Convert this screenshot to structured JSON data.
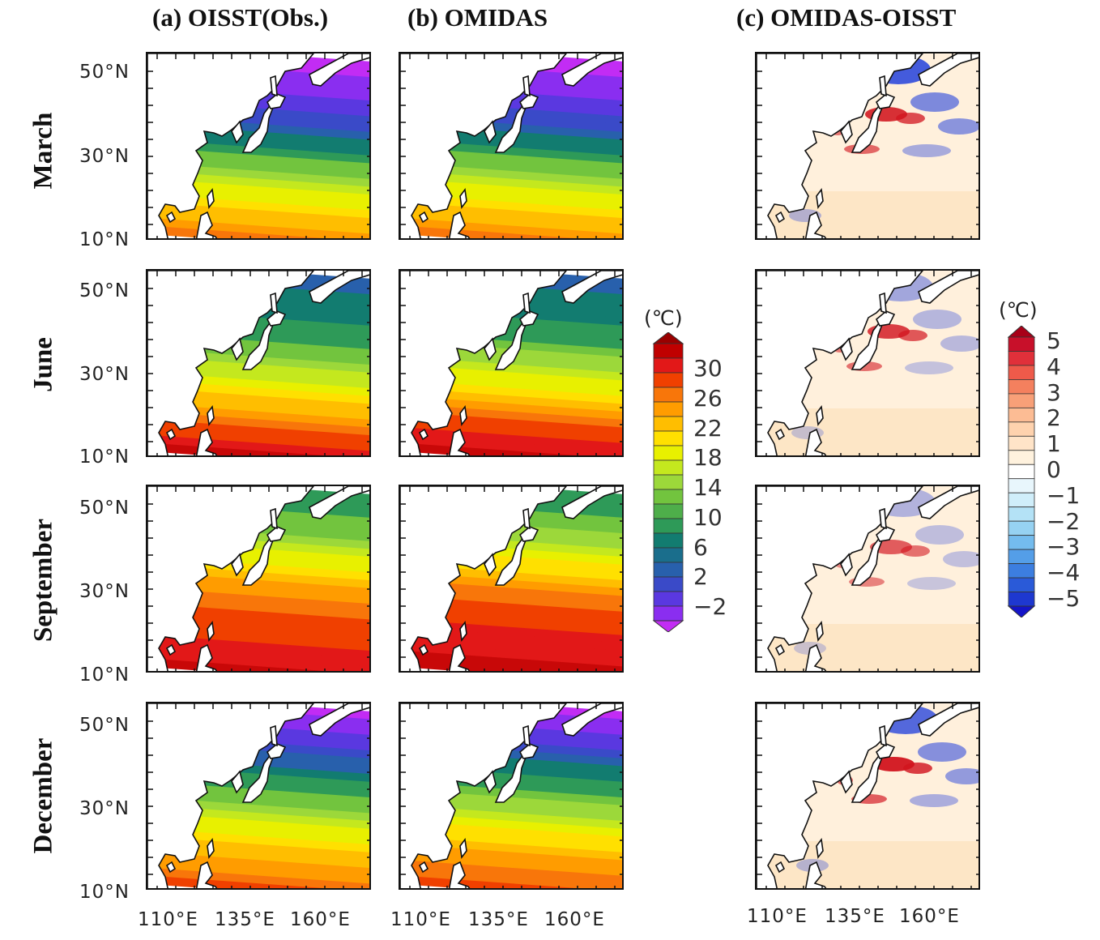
{
  "columns": [
    {
      "title": "(a) OISST(Obs.)",
      "kind": "sst"
    },
    {
      "title": "(b) OMIDAS",
      "kind": "sst"
    },
    {
      "title": "(c) OMIDAS-OISST",
      "kind": "diff"
    }
  ],
  "rows": [
    {
      "label": "March",
      "sst": [
        -2,
        0,
        4,
        10,
        18,
        23,
        26
      ],
      "diff_warm": 4.5,
      "diff_cold": -4.5
    },
    {
      "label": "June",
      "sst": [
        6,
        8,
        12,
        18,
        23,
        27,
        29
      ],
      "diff_warm": 4.0,
      "diff_cold": -1.5
    },
    {
      "label": "September",
      "sst": [
        10,
        14,
        20,
        25,
        27,
        28,
        29
      ],
      "diff_warm": 3.0,
      "diff_cold": -1.0
    },
    {
      "label": "December",
      "sst": [
        -2,
        2,
        8,
        15,
        21,
        25,
        27
      ],
      "diff_warm": 5.0,
      "diff_cold": -4.0
    }
  ],
  "lat_labels": [
    "50°N",
    "30°N",
    "10°N"
  ],
  "lon_labels": [
    "110°E",
    "135°E",
    "160°E"
  ],
  "sst_colorbar": {
    "unit": "(℃)",
    "ticks": [
      "30",
      "26",
      "22",
      "18",
      "14",
      "10",
      "6",
      "2",
      "−2"
    ],
    "colors": [
      "#9a0000",
      "#c00000",
      "#e21818",
      "#f04000",
      "#f8760a",
      "#ff9c00",
      "#ffbe00",
      "#ffe000",
      "#e8f000",
      "#c4e81e",
      "#9cd83a",
      "#72c43e",
      "#4eae4a",
      "#2e9a58",
      "#127c70",
      "#1a6e8c",
      "#2860ac",
      "#3a4ac8",
      "#5a38e0",
      "#8a2ef0",
      "#c22cf4"
    ]
  },
  "diff_colorbar": {
    "unit": "(℃)",
    "ticks": [
      "5",
      "4",
      "3",
      "2",
      "1",
      "0",
      "−1",
      "−2",
      "−3",
      "−4",
      "−5"
    ],
    "colors": [
      "#a80018",
      "#c8102a",
      "#e0303a",
      "#ee5a4a",
      "#f4805e",
      "#f8a078",
      "#fcbc94",
      "#fed2ae",
      "#ffe4c8",
      "#fff2de",
      "#ffffff",
      "#e8f6fc",
      "#d0eefa",
      "#b4e2f6",
      "#96d2f2",
      "#74bcee",
      "#549ee8",
      "#3c7ee0",
      "#2a5ad8",
      "#1e38d0",
      "#1414c8"
    ]
  }
}
